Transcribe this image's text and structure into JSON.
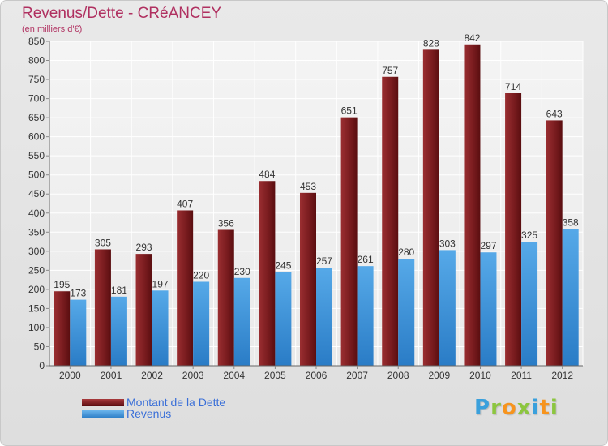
{
  "title": "Revenus/Dette - CRéANCEY",
  "subtitle": "(en milliers d'€)",
  "colors": {
    "dette": "#7a1c1f",
    "revenus": "#3f95dc",
    "title": "#b03060",
    "legend_text": "#3a6fd8"
  },
  "legend": [
    {
      "label": "Montant de la Dette",
      "series": "dette"
    },
    {
      "label": "Revenus",
      "series": "revenus"
    }
  ],
  "logo": {
    "letters": [
      "P",
      "r",
      "o",
      "x",
      "i",
      "t",
      "i"
    ],
    "letter_colors": [
      "#3aa0dc",
      "#8cc63f",
      "#f7941d",
      "#8cc63f",
      "#3aa0dc",
      "#f7941d",
      "#8cc63f"
    ]
  },
  "chart_data": {
    "type": "bar",
    "categories": [
      "2000",
      "2001",
      "2002",
      "2003",
      "2004",
      "2005",
      "2006",
      "2007",
      "2008",
      "2009",
      "2010",
      "2011",
      "2012"
    ],
    "series": [
      {
        "name": "Montant de la Dette",
        "key": "dette",
        "values": [
          195,
          305,
          293,
          407,
          356,
          484,
          453,
          651,
          757,
          828,
          842,
          714,
          643
        ]
      },
      {
        "name": "Revenus",
        "key": "revenus",
        "values": [
          173,
          181,
          197,
          220,
          230,
          245,
          257,
          261,
          280,
          303,
          297,
          325,
          358
        ]
      }
    ],
    "ylim": [
      0,
      850
    ],
    "ytick_step": 50,
    "grid": true,
    "legend_position": "bottom-left",
    "xlabel": "",
    "ylabel": ""
  }
}
